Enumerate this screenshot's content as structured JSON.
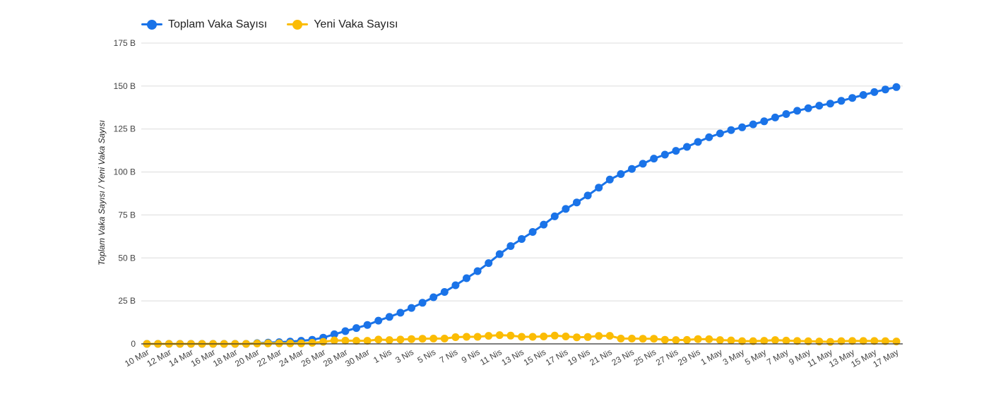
{
  "legend": {
    "total_label": "Toplam Vaka Sayısı",
    "new_label": "Yeni Vaka Sayısı"
  },
  "colors": {
    "total": "#1a73e8",
    "new": "#fbbc04",
    "grid": "#dcdcdc",
    "axis": "#333333"
  },
  "chart_data": {
    "type": "line",
    "ylabel": "Toplam Vaka Sayısı / Yeni Vaka Sayısı",
    "ylim": [
      0,
      175000
    ],
    "yticks": [
      {
        "value": 0,
        "label": "0"
      },
      {
        "value": 25000,
        "label": "25 B"
      },
      {
        "value": 50000,
        "label": "50 B"
      },
      {
        "value": 75000,
        "label": "75 B"
      },
      {
        "value": 100000,
        "label": "100 B"
      },
      {
        "value": 125000,
        "label": "125 B"
      },
      {
        "value": 150000,
        "label": "150 B"
      },
      {
        "value": 175000,
        "label": "175 B"
      }
    ],
    "grid": true,
    "legend_position": "top-left",
    "x_tick_labels": [
      "10 Mar",
      "12 Mar",
      "14 Mar",
      "16 Mar",
      "18 Mar",
      "20 Mar",
      "22 Mar",
      "24 Mar",
      "26 Mar",
      "28 Mar",
      "30 Mar",
      "1 Nis",
      "3 Nis",
      "5 Nis",
      "7 Nis",
      "9 Nis",
      "11 Nis",
      "13 Nis",
      "15 Nis",
      "17 Nis",
      "19 Nis",
      "21 Nis",
      "23 Nis",
      "25 Nis",
      "27 Nis",
      "29 Nis",
      "1 May",
      "3 May",
      "5 May",
      "7 May",
      "9 May",
      "11 May",
      "13 May",
      "15 May",
      "17 May"
    ],
    "x_dates": [
      "10 Mar",
      "11 Mar",
      "12 Mar",
      "13 Mar",
      "14 Mar",
      "15 Mar",
      "16 Mar",
      "17 Mar",
      "18 Mar",
      "19 Mar",
      "20 Mar",
      "21 Mar",
      "22 Mar",
      "23 Mar",
      "24 Mar",
      "25 Mar",
      "26 Mar",
      "27 Mar",
      "28 Mar",
      "29 Mar",
      "30 Mar",
      "31 Mar",
      "1 Nis",
      "2 Nis",
      "3 Nis",
      "4 Nis",
      "5 Nis",
      "6 Nis",
      "7 Nis",
      "8 Nis",
      "9 Nis",
      "10 Nis",
      "11 Nis",
      "12 Nis",
      "13 Nis",
      "14 Nis",
      "15 Nis",
      "16 Nis",
      "17 Nis",
      "18 Nis",
      "19 Nis",
      "20 Nis",
      "21 Nis",
      "22 Nis",
      "23 Nis",
      "24 Nis",
      "25 Nis",
      "26 Nis",
      "27 Nis",
      "28 Nis",
      "29 Nis",
      "30 Nis",
      "1 May",
      "2 May",
      "3 May",
      "4 May",
      "5 May",
      "6 May",
      "7 May",
      "8 May",
      "9 May",
      "10 May",
      "11 May",
      "12 May",
      "13 May",
      "14 May",
      "15 May",
      "16 May",
      "17 May"
    ],
    "series": [
      {
        "name": "Toplam Vaka Sayısı",
        "values": [
          0,
          0,
          0,
          0,
          0,
          0,
          0,
          0,
          0,
          0,
          400,
          700,
          1000,
          1300,
          1800,
          2400,
          3600,
          5600,
          7400,
          9200,
          11000,
          13500,
          15700,
          18100,
          20900,
          23900,
          27100,
          30200,
          34100,
          38200,
          42300,
          47000,
          52200,
          56900,
          61000,
          65100,
          69400,
          74200,
          78500,
          82300,
          86300,
          90900,
          95600,
          98800,
          101800,
          104800,
          107800,
          110100,
          112300,
          114600,
          117500,
          120200,
          122400,
          124400,
          126000,
          127700,
          129500,
          131700,
          133700,
          135600,
          137100,
          138600,
          139800,
          141400,
          143100,
          144800,
          146500,
          148000,
          149400
        ]
      },
      {
        "name": "Yeni Vaka Sayısı",
        "values": [
          0,
          0,
          0,
          0,
          0,
          0,
          0,
          0,
          0,
          0,
          200,
          300,
          300,
          300,
          300,
          600,
          1200,
          2000,
          1900,
          1800,
          1800,
          2500,
          2200,
          2500,
          2800,
          3000,
          3100,
          3100,
          3900,
          4100,
          4100,
          4700,
          5100,
          4800,
          4100,
          4100,
          4300,
          4800,
          4300,
          3800,
          4000,
          4600,
          4700,
          3100,
          3100,
          3000,
          3000,
          2400,
          2200,
          2300,
          2800,
          2700,
          2200,
          2000,
          1600,
          1600,
          1800,
          2200,
          1900,
          1700,
          1500,
          1400,
          1200,
          1600,
          1700,
          1700,
          1700,
          1600,
          1400
        ]
      }
    ]
  }
}
